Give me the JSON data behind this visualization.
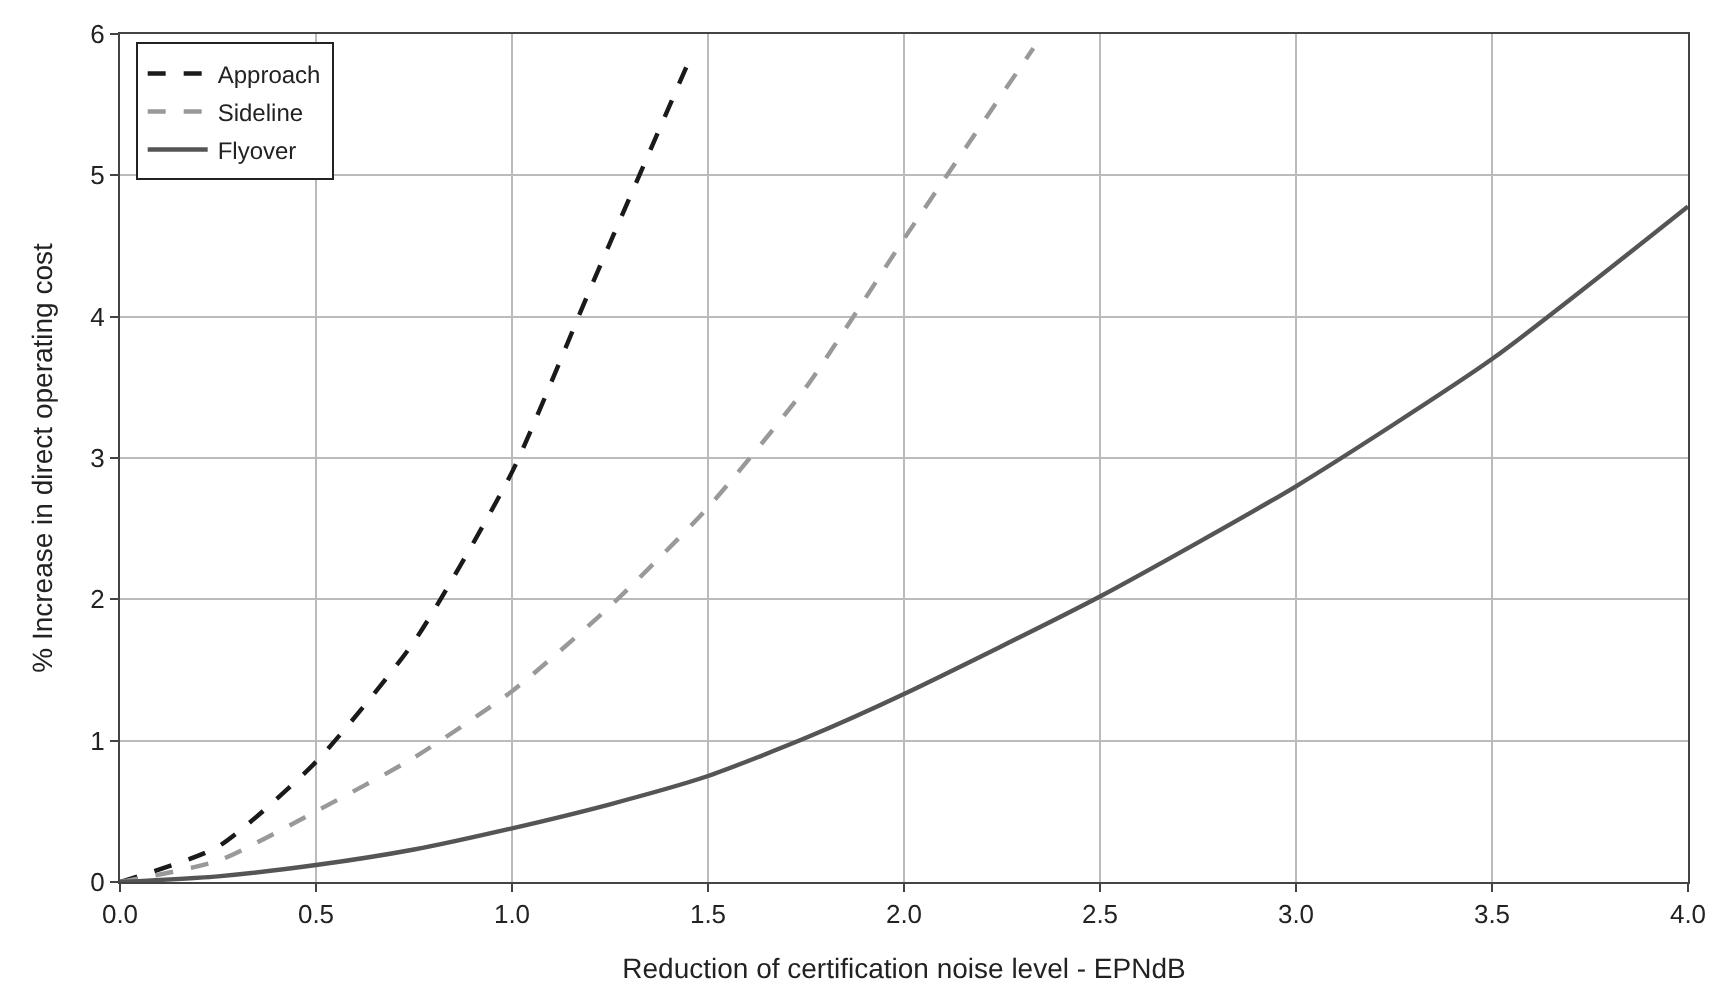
{
  "chart_data": {
    "type": "line",
    "xlabel": "Reduction of certification noise level - EPNdB",
    "ylabel": "% Increase in direct operating cost",
    "series": [
      {
        "name": "Approach",
        "color": "#1a1a1a",
        "line_style": "dashed",
        "x": [
          0,
          0.25,
          0.5,
          0.75,
          1.0,
          1.2,
          1.45
        ],
        "values": [
          0,
          0.25,
          0.85,
          1.7,
          2.9,
          4.2,
          5.8
        ]
      },
      {
        "name": "Sideline",
        "color": "#999999",
        "line_style": "dashed",
        "x": [
          0,
          0.25,
          0.5,
          0.75,
          1.0,
          1.25,
          1.5,
          1.75,
          2.0,
          2.33
        ],
        "values": [
          0,
          0.15,
          0.5,
          0.88,
          1.35,
          1.95,
          2.65,
          3.5,
          4.55,
          5.9
        ]
      },
      {
        "name": "Flyover",
        "color": "#555555",
        "line_style": "solid",
        "x": [
          0,
          0.25,
          0.5,
          0.75,
          1.0,
          1.25,
          1.5,
          1.75,
          2.0,
          2.5,
          3.0,
          3.5,
          4.0
        ],
        "values": [
          0,
          0.04,
          0.12,
          0.23,
          0.38,
          0.55,
          0.75,
          1.02,
          1.33,
          2.02,
          2.8,
          3.7,
          4.78
        ]
      }
    ],
    "xlim": [
      0,
      4
    ],
    "xticks": [
      {
        "value": 0,
        "label": "0.0"
      },
      0.5,
      {
        "value": 1,
        "label": "1.0"
      },
      1.5,
      {
        "value": 2,
        "label": "2.0"
      },
      2.5,
      {
        "value": 3,
        "label": "3.0"
      },
      3.5,
      {
        "value": 4,
        "label": "4.0"
      }
    ],
    "ylim": [
      0,
      6
    ],
    "yticks": [
      0,
      1,
      2,
      3,
      4,
      5,
      6
    ],
    "grid": true,
    "legend": "top left",
    "marker": "none"
  }
}
